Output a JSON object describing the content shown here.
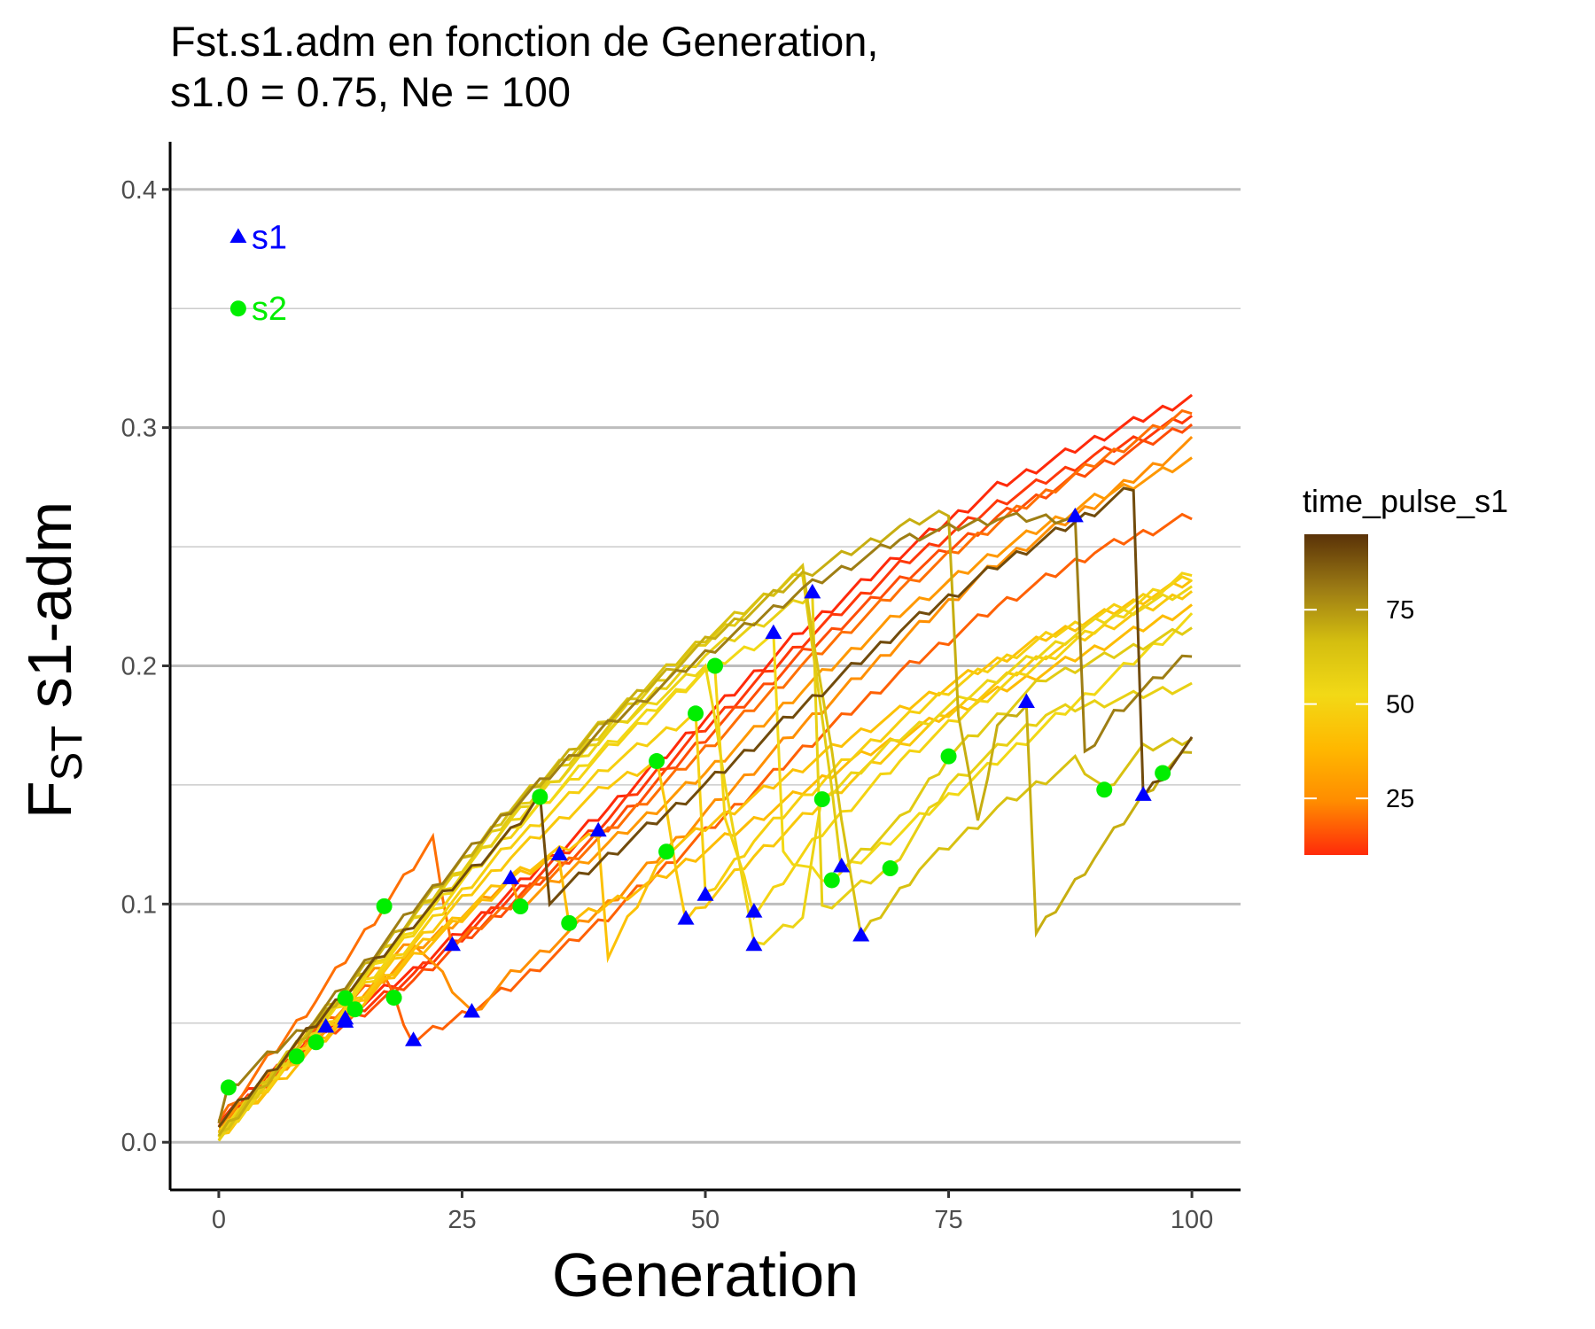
{
  "chart_data": {
    "type": "line",
    "title_lines": [
      "Fst.s1.adm en fonction de Generation,",
      "s1.0 = 0.75, Ne = 100"
    ],
    "xlabel": "Generation",
    "ylabel_main": "F",
    "ylabel_sub": "ST",
    "ylabel_rest": " s1-adm",
    "xlim": [
      -5,
      105
    ],
    "ylim": [
      -0.02,
      0.42
    ],
    "x_ticks": [
      0,
      25,
      50,
      75,
      100
    ],
    "x_tick_labels": [
      "0",
      "25",
      "50",
      "75",
      "100"
    ],
    "y_ticks": [
      0.0,
      0.1,
      0.2,
      0.3,
      0.4
    ],
    "y_tick_labels": [
      "0.0",
      "0.1",
      "0.2",
      "0.3",
      "0.4"
    ],
    "y_minor_grid": [
      0.05,
      0.15,
      0.25,
      0.35
    ],
    "grid": "horizontal",
    "legend": {
      "title": "time_pulse_s1",
      "position": "right",
      "range": [
        10,
        95
      ],
      "ticks": [
        25,
        50,
        75
      ],
      "tick_labels": [
        "25",
        "50",
        "75"
      ],
      "gradient_colors": [
        "#FF2A0A",
        "#FF8C00",
        "#FFB800",
        "#F2D916",
        "#D4BE10",
        "#9B7A14",
        "#5A3208"
      ]
    },
    "marker_legend": [
      {
        "name": "s1",
        "shape": "triangle",
        "color": "#0000FF",
        "x": 2,
        "y": 0.38
      },
      {
        "name": "s2",
        "shape": "circle",
        "color": "#00EE00",
        "x": 2,
        "y": 0.35
      }
    ],
    "series": [
      {
        "time_pulse_s1": 10,
        "pulse_s1_at": 11,
        "pulse_s2_at": 14,
        "pts": [
          [
            0,
            0.01
          ],
          [
            10,
            0.045
          ],
          [
            20,
            0.072
          ],
          [
            30,
            0.105
          ],
          [
            40,
            0.14
          ],
          [
            50,
            0.178
          ],
          [
            60,
            0.215
          ],
          [
            70,
            0.247
          ],
          [
            80,
            0.275
          ],
          [
            90,
            0.295
          ],
          [
            100,
            0.313
          ]
        ]
      },
      {
        "time_pulse_s1": 12,
        "pulse_s1_at": 13,
        "pulse_s2_at": 8,
        "pts": [
          [
            0,
            0.008
          ],
          [
            10,
            0.043
          ],
          [
            20,
            0.07
          ],
          [
            30,
            0.103
          ],
          [
            40,
            0.136
          ],
          [
            50,
            0.174
          ],
          [
            60,
            0.21
          ],
          [
            70,
            0.242
          ],
          [
            80,
            0.268
          ],
          [
            90,
            0.288
          ],
          [
            100,
            0.305
          ]
        ]
      },
      {
        "time_pulse_s1": 15,
        "pulse_s1_at": 13,
        "pulse_s2_at": 10,
        "pts": [
          [
            0,
            0.007
          ],
          [
            10,
            0.042
          ],
          [
            20,
            0.068
          ],
          [
            30,
            0.1
          ],
          [
            40,
            0.132
          ],
          [
            50,
            0.17
          ],
          [
            60,
            0.205
          ],
          [
            70,
            0.236
          ],
          [
            80,
            0.262
          ],
          [
            90,
            0.283
          ],
          [
            100,
            0.302
          ]
        ]
      },
      {
        "time_pulse_s1": 18,
        "pulse_s1_at": 20,
        "pulse_s2_at": 18,
        "pts": [
          [
            0,
            0.006
          ],
          [
            10,
            0.048
          ],
          [
            17,
            0.07
          ],
          [
            20,
            0.042
          ],
          [
            30,
            0.065
          ],
          [
            40,
            0.095
          ],
          [
            50,
            0.13
          ],
          [
            60,
            0.165
          ],
          [
            70,
            0.197
          ],
          [
            80,
            0.225
          ],
          [
            90,
            0.248
          ],
          [
            100,
            0.263
          ]
        ]
      },
      {
        "time_pulse_s1": 20,
        "pulse_s1_at": 24,
        "pulse_s2_at": 17,
        "pts": [
          [
            0,
            0.009
          ],
          [
            10,
            0.06
          ],
          [
            22,
            0.127
          ],
          [
            24,
            0.082
          ],
          [
            30,
            0.1
          ],
          [
            40,
            0.13
          ],
          [
            50,
            0.165
          ],
          [
            60,
            0.2
          ],
          [
            70,
            0.232
          ],
          [
            80,
            0.26
          ],
          [
            90,
            0.285
          ],
          [
            100,
            0.308
          ]
        ]
      },
      {
        "time_pulse_s1": 25,
        "pulse_s1_at": 26,
        "pulse_s2_at": 13,
        "pts": [
          [
            0,
            0.005
          ],
          [
            10,
            0.05
          ],
          [
            20,
            0.085
          ],
          [
            26,
            0.054
          ],
          [
            30,
            0.07
          ],
          [
            40,
            0.1
          ],
          [
            50,
            0.138
          ],
          [
            60,
            0.175
          ],
          [
            70,
            0.21
          ],
          [
            80,
            0.243
          ],
          [
            90,
            0.268
          ],
          [
            100,
            0.294
          ]
        ]
      },
      {
        "time_pulse_s1": 28,
        "pulse_s1_at": 30,
        "pulse_s2_at": 31,
        "pts": [
          [
            0,
            0.004
          ],
          [
            10,
            0.044
          ],
          [
            20,
            0.08
          ],
          [
            30,
            0.11
          ],
          [
            31,
            0.099
          ],
          [
            40,
            0.125
          ],
          [
            50,
            0.155
          ],
          [
            60,
            0.19
          ],
          [
            70,
            0.222
          ],
          [
            80,
            0.248
          ],
          [
            90,
            0.27
          ],
          [
            100,
            0.286
          ]
        ]
      },
      {
        "time_pulse_s1": 40,
        "pulse_s1_at": 35,
        "pulse_s2_at": 36,
        "pts": [
          [
            0,
            0.003
          ],
          [
            10,
            0.04
          ],
          [
            20,
            0.078
          ],
          [
            30,
            0.11
          ],
          [
            35,
            0.12
          ],
          [
            36,
            0.092
          ],
          [
            45,
            0.11
          ],
          [
            55,
            0.135
          ],
          [
            65,
            0.16
          ],
          [
            75,
            0.18
          ],
          [
            85,
            0.198
          ],
          [
            100,
            0.225
          ]
        ]
      },
      {
        "time_pulse_s1": 42,
        "pulse_s1_at": 39,
        "pulse_s2_at": 46,
        "pts": [
          [
            0,
            0.004
          ],
          [
            10,
            0.042
          ],
          [
            20,
            0.08
          ],
          [
            30,
            0.112
          ],
          [
            39,
            0.13
          ],
          [
            40,
            0.078
          ],
          [
            46,
            0.122
          ],
          [
            55,
            0.145
          ],
          [
            65,
            0.17
          ],
          [
            75,
            0.192
          ],
          [
            85,
            0.212
          ],
          [
            100,
            0.236
          ]
        ]
      },
      {
        "time_pulse_s1": 45,
        "pulse_s1_at": 48,
        "pulse_s2_at": 45,
        "pts": [
          [
            0,
            0.002
          ],
          [
            10,
            0.043
          ],
          [
            20,
            0.083
          ],
          [
            30,
            0.12
          ],
          [
            40,
            0.15
          ],
          [
            45,
            0.16
          ],
          [
            48,
            0.093
          ],
          [
            55,
            0.12
          ],
          [
            65,
            0.152
          ],
          [
            75,
            0.18
          ],
          [
            85,
            0.205
          ],
          [
            100,
            0.232
          ]
        ]
      },
      {
        "time_pulse_s1": 48,
        "pulse_s1_at": 50,
        "pulse_s2_at": 49,
        "pts": [
          [
            0,
            0.003
          ],
          [
            10,
            0.045
          ],
          [
            20,
            0.085
          ],
          [
            30,
            0.125
          ],
          [
            40,
            0.158
          ],
          [
            49,
            0.18
          ],
          [
            50,
            0.103
          ],
          [
            55,
            0.127
          ],
          [
            65,
            0.162
          ],
          [
            75,
            0.19
          ],
          [
            85,
            0.212
          ],
          [
            100,
            0.237
          ]
        ]
      },
      {
        "time_pulse_s1": 50,
        "pulse_s1_at": 55,
        "pulse_s2_at": 51,
        "pts": [
          [
            0,
            0.002
          ],
          [
            10,
            0.046
          ],
          [
            20,
            0.088
          ],
          [
            30,
            0.13
          ],
          [
            40,
            0.165
          ],
          [
            51,
            0.2
          ],
          [
            52,
            0.137
          ],
          [
            55,
            0.096
          ],
          [
            62,
            0.13
          ],
          [
            70,
            0.16
          ],
          [
            80,
            0.19
          ],
          [
            90,
            0.215
          ],
          [
            100,
            0.24
          ]
        ]
      },
      {
        "time_pulse_s1": 52,
        "pulse_s1_at": 57,
        "pulse_s2_at": 63,
        "pts": [
          [
            0,
            0.003
          ],
          [
            10,
            0.047
          ],
          [
            20,
            0.09
          ],
          [
            30,
            0.13
          ],
          [
            40,
            0.167
          ],
          [
            50,
            0.198
          ],
          [
            57,
            0.213
          ],
          [
            58,
            0.12
          ],
          [
            63,
            0.11
          ],
          [
            70,
            0.13
          ],
          [
            80,
            0.16
          ],
          [
            90,
            0.19
          ],
          [
            100,
            0.22
          ]
        ]
      },
      {
        "time_pulse_s1": 55,
        "pulse_s1_at": 55,
        "pulse_s2_at": 62,
        "pts": [
          [
            0,
            0.002
          ],
          [
            10,
            0.048
          ],
          [
            20,
            0.092
          ],
          [
            30,
            0.134
          ],
          [
            40,
            0.172
          ],
          [
            50,
            0.2
          ],
          [
            55,
            0.082
          ],
          [
            60,
            0.095
          ],
          [
            62,
            0.144
          ],
          [
            70,
            0.17
          ],
          [
            80,
            0.195
          ],
          [
            90,
            0.218
          ],
          [
            100,
            0.232
          ]
        ]
      },
      {
        "time_pulse_s1": 57,
        "pulse_s1_at": 61,
        "pulse_s2_at": 69,
        "pts": [
          [
            0,
            0.003
          ],
          [
            10,
            0.049
          ],
          [
            20,
            0.093
          ],
          [
            30,
            0.135
          ],
          [
            40,
            0.172
          ],
          [
            50,
            0.205
          ],
          [
            61,
            0.23
          ],
          [
            62,
            0.098
          ],
          [
            69,
            0.115
          ],
          [
            75,
            0.15
          ],
          [
            85,
            0.18
          ],
          [
            100,
            0.192
          ]
        ]
      },
      {
        "time_pulse_s1": 60,
        "pulse_s1_at": 64,
        "pulse_s2_at": 75,
        "pts": [
          [
            0,
            0.002
          ],
          [
            10,
            0.05
          ],
          [
            20,
            0.094
          ],
          [
            30,
            0.137
          ],
          [
            40,
            0.175
          ],
          [
            50,
            0.21
          ],
          [
            60,
            0.24
          ],
          [
            64,
            0.115
          ],
          [
            70,
            0.135
          ],
          [
            75,
            0.162
          ],
          [
            85,
            0.195
          ],
          [
            100,
            0.216
          ]
        ]
      },
      {
        "time_pulse_s1": 65,
        "pulse_s1_at": 66,
        "pulse_s2_at": 91,
        "pts": [
          [
            0,
            0.003
          ],
          [
            10,
            0.051
          ],
          [
            20,
            0.095
          ],
          [
            30,
            0.14
          ],
          [
            40,
            0.178
          ],
          [
            50,
            0.212
          ],
          [
            60,
            0.24
          ],
          [
            66,
            0.086
          ],
          [
            72,
            0.115
          ],
          [
            80,
            0.14
          ],
          [
            88,
            0.16
          ],
          [
            91,
            0.148
          ],
          [
            95,
            0.165
          ],
          [
            100,
            0.17
          ]
        ]
      },
      {
        "time_pulse_s1": 70,
        "pulse_s1_at": 83,
        "pulse_s2_at": 97,
        "pts": [
          [
            0,
            0.002
          ],
          [
            10,
            0.05
          ],
          [
            20,
            0.096
          ],
          [
            30,
            0.14
          ],
          [
            40,
            0.178
          ],
          [
            50,
            0.21
          ],
          [
            60,
            0.238
          ],
          [
            70,
            0.258
          ],
          [
            75,
            0.265
          ],
          [
            76,
            0.18
          ],
          [
            78,
            0.133
          ],
          [
            80,
            0.175
          ],
          [
            83,
            0.184
          ],
          [
            84,
            0.087
          ],
          [
            90,
            0.12
          ],
          [
            97,
            0.155
          ],
          [
            100,
            0.165
          ]
        ]
      },
      {
        "time_pulse_s1": 80,
        "pulse_s1_at": 88,
        "pulse_s2_at": 1,
        "pts": [
          [
            0,
            0.008
          ],
          [
            1,
            0.023
          ],
          [
            10,
            0.052
          ],
          [
            20,
            0.098
          ],
          [
            30,
            0.14
          ],
          [
            40,
            0.175
          ],
          [
            50,
            0.205
          ],
          [
            60,
            0.232
          ],
          [
            70,
            0.253
          ],
          [
            80,
            0.262
          ],
          [
            88,
            0.262
          ],
          [
            89,
            0.162
          ],
          [
            92,
            0.18
          ],
          [
            100,
            0.206
          ]
        ]
      },
      {
        "time_pulse_s1": 90,
        "pulse_s1_at": 95,
        "pulse_s2_at": 33,
        "pts": [
          [
            0,
            0.007
          ],
          [
            10,
            0.05
          ],
          [
            20,
            0.092
          ],
          [
            30,
            0.13
          ],
          [
            33,
            0.145
          ],
          [
            34,
            0.102
          ],
          [
            40,
            0.12
          ],
          [
            50,
            0.15
          ],
          [
            60,
            0.183
          ],
          [
            70,
            0.215
          ],
          [
            80,
            0.242
          ],
          [
            90,
            0.265
          ],
          [
            94,
            0.275
          ],
          [
            95,
            0.145
          ],
          [
            100,
            0.168
          ]
        ]
      }
    ]
  }
}
